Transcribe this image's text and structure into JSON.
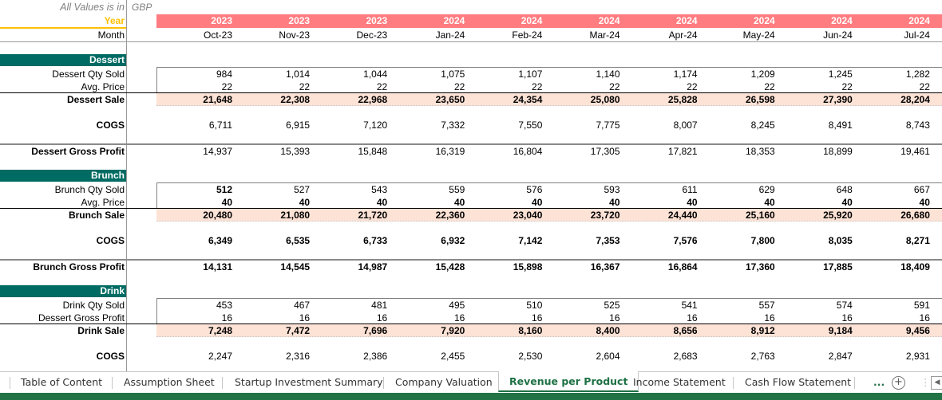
{
  "header": {
    "values_label": "All Values is in",
    "currency": "GBP",
    "year_label": "Year",
    "month_label": "Month",
    "years": [
      "2023",
      "2023",
      "2023",
      "2024",
      "2024",
      "2024",
      "2024",
      "2024",
      "2024",
      "2024"
    ],
    "months": [
      "Oct-23",
      "Nov-23",
      "Dec-23",
      "Jan-24",
      "Feb-24",
      "Mar-24",
      "Apr-24",
      "May-24",
      "Jun-24",
      "Jul-24"
    ]
  },
  "sections": {
    "dessert": {
      "title": "Dessert",
      "qty_label": "Dessert Qty Sold",
      "qty": [
        "984",
        "1,014",
        "1,044",
        "1,075",
        "1,107",
        "1,140",
        "1,174",
        "1,209",
        "1,245",
        "1,282"
      ],
      "price_label": "Avg. Price",
      "price": [
        "22",
        "22",
        "22",
        "22",
        "22",
        "22",
        "22",
        "22",
        "22",
        "22"
      ],
      "sale_label": "Dessert Sale",
      "sale": [
        "21,648",
        "22,308",
        "22,968",
        "23,650",
        "24,354",
        "25,080",
        "25,828",
        "26,598",
        "27,390",
        "28,204"
      ],
      "cogs_label": "COGS",
      "cogs": [
        "6,711",
        "6,915",
        "7,120",
        "7,332",
        "7,550",
        "7,775",
        "8,007",
        "8,245",
        "8,491",
        "8,743"
      ],
      "gp_label": "Dessert Gross Profit",
      "gp": [
        "14,937",
        "15,393",
        "15,848",
        "16,319",
        "16,804",
        "17,305",
        "17,821",
        "18,353",
        "18,899",
        "19,461"
      ]
    },
    "brunch": {
      "title": "Brunch",
      "qty_label": "Brunch Qty Sold",
      "qty": [
        "512",
        "527",
        "543",
        "559",
        "576",
        "593",
        "611",
        "629",
        "648",
        "667"
      ],
      "price_label": "Avg. Price",
      "price": [
        "40",
        "40",
        "40",
        "40",
        "40",
        "40",
        "40",
        "40",
        "40",
        "40"
      ],
      "sale_label": "Brunch Sale",
      "sale": [
        "20,480",
        "21,080",
        "21,720",
        "22,360",
        "23,040",
        "23,720",
        "24,440",
        "25,160",
        "25,920",
        "26,680"
      ],
      "cogs_label": "COGS",
      "cogs": [
        "6,349",
        "6,535",
        "6,733",
        "6,932",
        "7,142",
        "7,353",
        "7,576",
        "7,800",
        "8,035",
        "8,271"
      ],
      "gp_label": "Brunch Gross Profit",
      "gp": [
        "14,131",
        "14,545",
        "14,987",
        "15,428",
        "15,898",
        "16,367",
        "16,864",
        "17,360",
        "17,885",
        "18,409"
      ]
    },
    "drink": {
      "title": "Drink",
      "qty_label": "Drink Qty Sold",
      "qty": [
        "453",
        "467",
        "481",
        "495",
        "510",
        "525",
        "541",
        "557",
        "574",
        "591"
      ],
      "price_label": "Dessert Gross Profit",
      "price": [
        "16",
        "16",
        "16",
        "16",
        "16",
        "16",
        "16",
        "16",
        "16",
        "16"
      ],
      "sale_label": "Drink Sale",
      "sale": [
        "7,248",
        "7,472",
        "7,696",
        "7,920",
        "8,160",
        "8,400",
        "8,656",
        "8,912",
        "9,184",
        "9,456"
      ],
      "cogs_label": "COGS",
      "cogs": [
        "2,247",
        "2,316",
        "2,386",
        "2,455",
        "2,530",
        "2,604",
        "2,683",
        "2,763",
        "2,847",
        "2,931"
      ]
    }
  },
  "tabs": [
    {
      "label": "Table of Content",
      "active": false
    },
    {
      "label": "Assumption Sheet",
      "active": false
    },
    {
      "label": "Startup Investment Summary",
      "active": false
    },
    {
      "label": "Company Valuation",
      "active": false
    },
    {
      "label": "Revenue per Product",
      "active": true
    },
    {
      "label": "Income Statement",
      "active": false
    },
    {
      "label": "Cash Flow Statement",
      "active": false
    }
  ],
  "tab_controls": {
    "more": "...",
    "add": "+",
    "scroll_left": "◀"
  },
  "colors": {
    "year_bar": "#ff7c80",
    "section": "#006b63",
    "sale_band": "#fde2d6",
    "year_accent": "#ffc000",
    "excel_green": "#217346"
  }
}
